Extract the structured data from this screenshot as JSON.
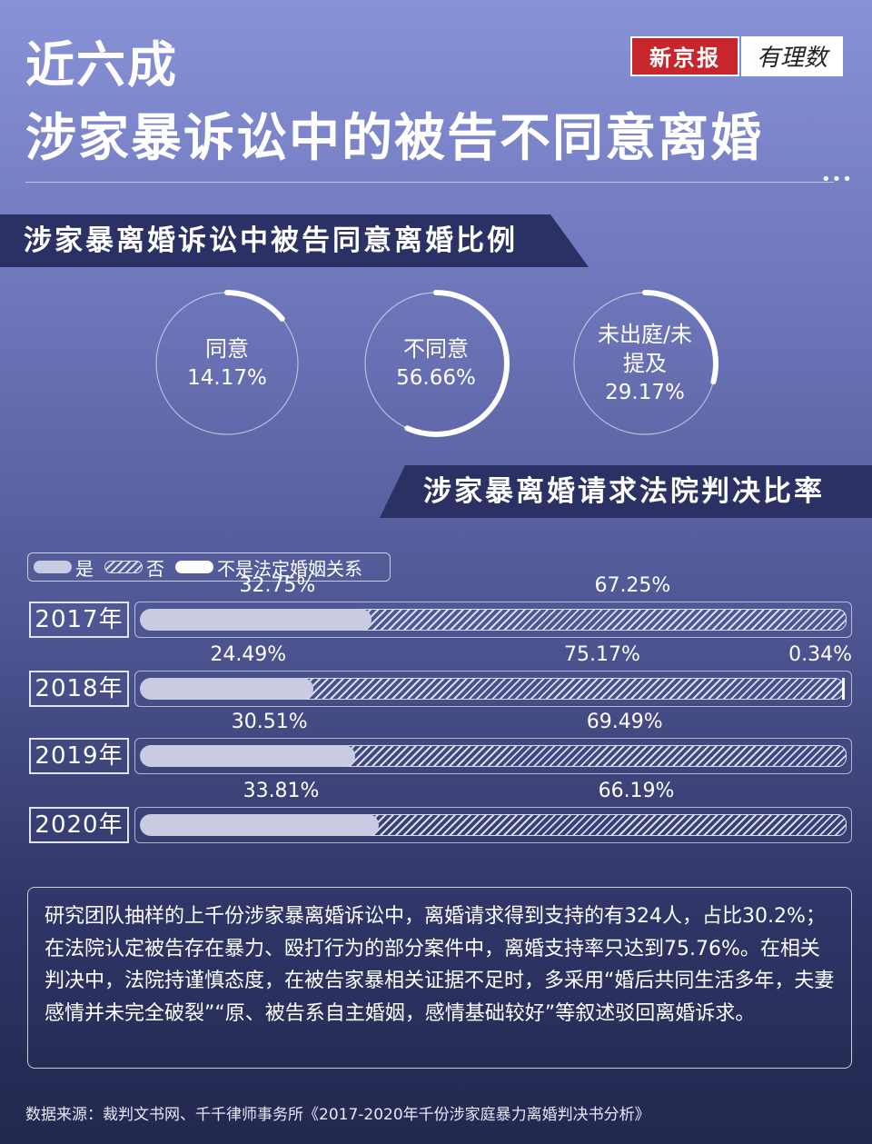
{
  "header": {
    "title_line1": "近六成",
    "title_line2": "涉家暴诉讼中的被告不同意离婚",
    "logo_left": "新京报",
    "logo_right": "有理数",
    "dots": "•••"
  },
  "sections": {
    "consent_title": "涉家暴离婚诉讼中被告同意离婚比例",
    "ruling_title": "涉家暴离婚请求法院判决比率"
  },
  "chart_data": [
    {
      "type": "pie",
      "title": "涉家暴离婚诉讼中被告同意离婚比例",
      "slices": [
        {
          "label": "同意",
          "value": 14.17,
          "display": "14.17%"
        },
        {
          "label": "不同意",
          "value": 56.66,
          "display": "56.66%"
        },
        {
          "label": "未出庭/未提及",
          "value": 29.17,
          "display": "29.17%"
        }
      ]
    },
    {
      "type": "bar",
      "title": "涉家暴离婚请求法院判决比率",
      "stacked": true,
      "legend": [
        "是",
        "否",
        "不是法定婚姻关系"
      ],
      "categories": [
        "2017年",
        "2018年",
        "2019年",
        "2020年"
      ],
      "series": [
        {
          "name": "是",
          "values": [
            32.75,
            24.49,
            30.51,
            33.81
          ],
          "labels": [
            "32.75%",
            "24.49%",
            "30.51%",
            "33.81%"
          ]
        },
        {
          "name": "否",
          "values": [
            67.25,
            75.17,
            69.49,
            66.19
          ],
          "labels": [
            "67.25%",
            "75.17%",
            "69.49%",
            "66.19%"
          ]
        },
        {
          "name": "不是法定婚姻关系",
          "values": [
            0,
            0.34,
            0,
            0
          ],
          "labels": [
            "",
            "0.34%",
            "",
            ""
          ]
        }
      ]
    }
  ],
  "note": "研究团队抽样的上千份涉家暴离婚诉讼中，离婚请求得到支持的有324人，占比30.2%；在法院认定被告存在暴力、殴打行为的部分案件中，离婚支持率只达到75.76%。在相关判决中，法院持谨慎态度，在被告家暴相关证据不足时，多采用“婚后共同生活多年，夫妻感情并未完全破裂”“原、被告系自主婚姻，感情基础较好”等叙述驳回离婚诉求。",
  "source": "数据来源：裁判文书网、千千律师事务所《2017-2020年千份涉家庭暴力离婚判决书分析》",
  "colors": {
    "bar_yes": "#c9cbe3",
    "bar_no_stripe": "#d9dbef",
    "bar_other": "#ffffff",
    "ring_arc": "#ffffff",
    "ring_track": "rgba(255,255,255,0.55)"
  }
}
